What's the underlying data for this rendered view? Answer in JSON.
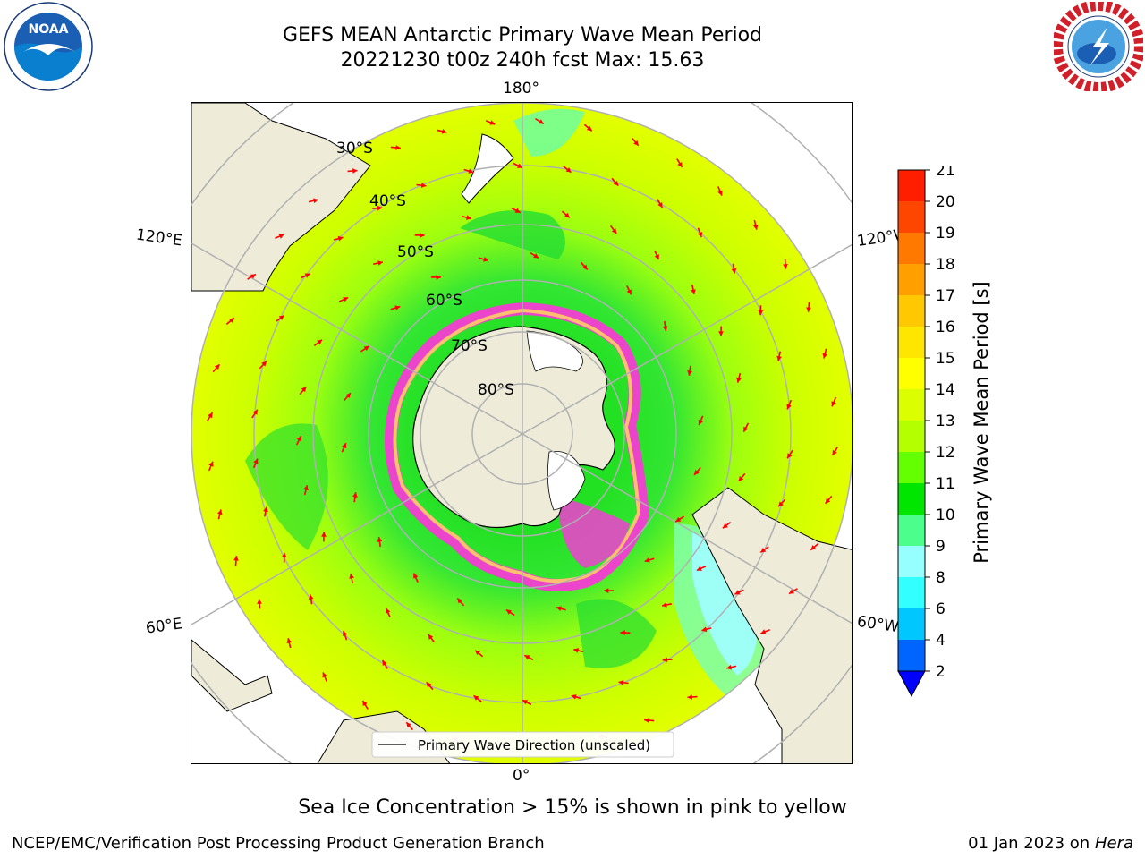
{
  "header": {
    "title_line1": "GEFS MEAN Antarctic Primary Wave Mean Period",
    "title_line2": "20221230 t00z 240h fcst   Max: 15.63"
  },
  "logos": {
    "left": "noaa-logo",
    "right": "national-weather-service-logo",
    "left_text": "NOAA",
    "left_ring_text": "NATIONAL OCEANIC AND ATMOSPHERIC ADMINISTRATION · U.S. DEPARTMENT OF COMMERCE",
    "right_ring_text": "NATIONAL WEATHER SERVICE"
  },
  "map": {
    "projection": "south-polar-stereographic",
    "meridian_labels": {
      "top": "180°",
      "bottom": "0°",
      "left_upper": "120°E",
      "left_lower": "60°E",
      "right_upper": "120°W",
      "right_lower": "60°W"
    },
    "parallel_labels": [
      "30°S",
      "40°S",
      "50°S",
      "60°S",
      "70°S",
      "80°S"
    ],
    "legend_label": "Primary Wave Direction (unscaled)",
    "land_color": "#eeecd9",
    "arrow_color": "#ff0000",
    "grid_color": "#b0b0b0"
  },
  "colorbar": {
    "label": "Primary Wave Mean Period [s]",
    "ticks": [
      "2",
      "4",
      "6",
      "8",
      "9",
      "10",
      "11",
      "12",
      "13",
      "14",
      "15",
      "16",
      "17",
      "18",
      "19",
      "20",
      "21"
    ],
    "colors": [
      "#0064ff",
      "#00c8ff",
      "#32ffff",
      "#96ffff",
      "#4cff8c",
      "#00e600",
      "#64ff00",
      "#b4ff00",
      "#dcff00",
      "#ffff00",
      "#ffe600",
      "#ffc800",
      "#ffa000",
      "#ff7800",
      "#ff4600",
      "#ff1e00"
    ],
    "extend_color": "#0000ff"
  },
  "caption": "Sea Ice Concentration > 15% is shown in pink to yellow",
  "footer": {
    "left": "NCEP/EMC/Verification Post Processing Product Generation Branch",
    "right_date": "01 Jan 2023 on ",
    "right_host": "Hera"
  }
}
